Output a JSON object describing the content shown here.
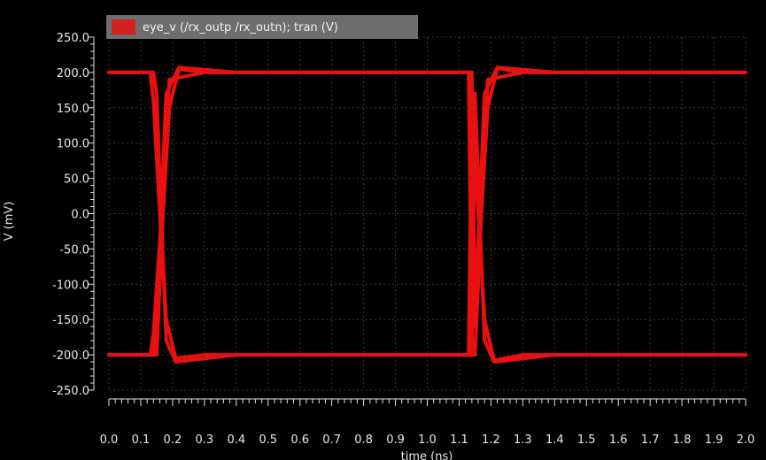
{
  "chart_data": {
    "type": "line",
    "title": "",
    "xlabel": "time (ns)",
    "ylabel": "V (mV)",
    "xlim": [
      0.0,
      2.0
    ],
    "ylim": [
      -250.0,
      250.0
    ],
    "x_ticks": [
      "0.0",
      "0.1",
      "0.2",
      "0.3",
      "0.4",
      "0.5",
      "0.6",
      "0.7",
      "0.8",
      "0.9",
      "1.0",
      "1.1",
      "1.2",
      "1.3",
      "1.4",
      "1.5",
      "1.6",
      "1.7",
      "1.8",
      "1.9",
      "2.0"
    ],
    "y_ticks": [
      "250.0",
      "200.0",
      "150.0",
      "100.0",
      "50.0",
      "0.0",
      "-50.0",
      "-100.0",
      "-150.0",
      "-200.0",
      "-250.0"
    ],
    "grid": true,
    "legend_position": "top-left",
    "series": [
      {
        "name": "eye_v (/rx_outp /rx_outn); tran (V)",
        "color": "#e81010",
        "traces": [
          {
            "x": [
              0.0,
              0.13,
              0.14,
              0.16,
              0.18,
              0.21,
              0.3,
              1.13,
              1.14,
              1.16,
              1.18,
              1.21,
              1.3,
              2.0
            ],
            "y": [
              200,
              200,
              160,
              0,
              -150,
              -205,
              -200,
              -200,
              160,
              0,
              -150,
              -208,
              -200,
              -200
            ]
          },
          {
            "x": [
              0.0,
              0.14,
              0.15,
              0.17,
              0.19,
              0.22,
              0.3,
              1.14,
              1.15,
              1.17,
              1.19,
              1.22,
              1.3,
              2.0
            ],
            "y": [
              -200,
              -200,
              -160,
              0,
              150,
              205,
              200,
              200,
              -160,
              0,
              150,
              206,
              200,
              200
            ]
          },
          {
            "x": [
              0.0,
              0.14,
              0.15,
              0.16,
              0.18,
              0.21,
              0.4,
              1.14,
              1.15,
              1.16,
              1.18,
              1.21,
              1.4,
              2.0
            ],
            "y": [
              200,
              200,
              170,
              50,
              -180,
              -210,
              -200,
              -200,
              170,
              50,
              -180,
              -210,
              -200,
              -200
            ]
          },
          {
            "x": [
              0.0,
              0.13,
              0.14,
              0.16,
              0.18,
              0.22,
              0.4,
              1.13,
              1.14,
              1.16,
              1.18,
              1.22,
              1.4,
              2.0
            ],
            "y": [
              -200,
              -200,
              -170,
              -40,
              170,
              207,
              200,
              200,
              -170,
              -40,
              170,
              207,
              200,
              200
            ]
          },
          {
            "x": [
              0.0,
              0.15,
              0.18,
              0.19,
              0.3
            ],
            "y": [
              -200,
              -200,
              100,
              190,
              200
            ]
          },
          {
            "x": [
              1.0,
              1.15,
              1.18,
              1.19,
              1.3
            ],
            "y": [
              -200,
              -200,
              100,
              190,
              200
            ]
          }
        ]
      }
    ]
  },
  "legend": {
    "label": "eye_v (/rx_outp /rx_outn); tran (V)",
    "swatch_color": "#d42020"
  },
  "colors": {
    "background": "#000000",
    "grid": "#3a3a3a",
    "axis": "#e0e0e0",
    "trace": "#e81010",
    "legend_bg": "#6e6e6e"
  }
}
